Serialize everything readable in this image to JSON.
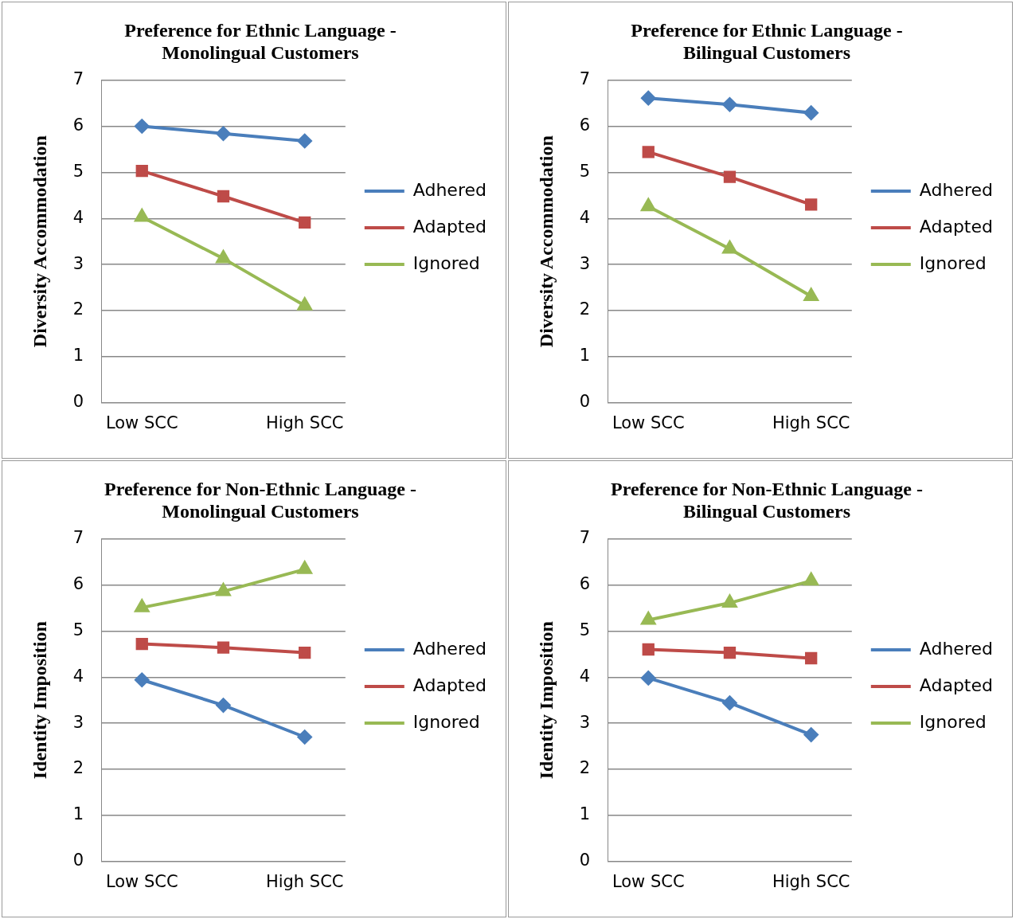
{
  "chart_data": [
    {
      "type": "line",
      "title": "Preference for Ethnic Language - Monolingual Customers",
      "ylabel": "Diversity Accommodation",
      "categories": [
        "Low SCC",
        null,
        "High SCC"
      ],
      "ylim": [
        0,
        7
      ],
      "yticks": [
        0,
        1,
        2,
        3,
        4,
        5,
        6,
        7
      ],
      "grid": "y",
      "legend": "right",
      "series": [
        {
          "name": "Adhered",
          "color": "#4a7ebb",
          "marker": "diamond",
          "values": [
            6.0,
            5.84,
            5.68
          ]
        },
        {
          "name": "Adapted",
          "color": "#be4b48",
          "marker": "square",
          "values": [
            5.03,
            4.48,
            3.91
          ]
        },
        {
          "name": "Ignored",
          "color": "#98b954",
          "marker": "triangle",
          "values": [
            4.03,
            3.13,
            2.11
          ]
        }
      ]
    },
    {
      "type": "line",
      "title": "Preference for Ethnic Language - Bilingual Customers",
      "ylabel": "Diversity Accommodation",
      "categories": [
        "Low SCC",
        null,
        "High SCC"
      ],
      "ylim": [
        0,
        7
      ],
      "yticks": [
        0,
        1,
        2,
        3,
        4,
        5,
        6,
        7
      ],
      "grid": "y",
      "legend": "right",
      "series": [
        {
          "name": "Adhered",
          "color": "#4a7ebb",
          "marker": "diamond",
          "values": [
            6.61,
            6.47,
            6.29
          ]
        },
        {
          "name": "Adapted",
          "color": "#be4b48",
          "marker": "square",
          "values": [
            5.44,
            4.9,
            4.3
          ]
        },
        {
          "name": "Ignored",
          "color": "#98b954",
          "marker": "triangle",
          "values": [
            4.26,
            3.34,
            2.31
          ]
        }
      ]
    },
    {
      "type": "line",
      "title": "Preference for Non-Ethnic Language - Monolingual Customers",
      "ylabel": "Identity Imposition",
      "categories": [
        "Low SCC",
        null,
        "High SCC"
      ],
      "ylim": [
        0,
        7
      ],
      "yticks": [
        0,
        1,
        2,
        3,
        4,
        5,
        6,
        7
      ],
      "grid": "y",
      "legend": "right",
      "series": [
        {
          "name": "Adhered",
          "color": "#4a7ebb",
          "marker": "diamond",
          "values": [
            3.94,
            3.39,
            2.7
          ]
        },
        {
          "name": "Adapted",
          "color": "#be4b48",
          "marker": "square",
          "values": [
            4.72,
            4.64,
            4.53
          ]
        },
        {
          "name": "Ignored",
          "color": "#98b954",
          "marker": "triangle",
          "values": [
            5.51,
            5.86,
            6.34
          ]
        }
      ]
    },
    {
      "type": "line",
      "title": "Preference for Non-Ethnic Language - Bilingual Customers",
      "ylabel": "Identity Imposition",
      "categories": [
        "Low SCC",
        null,
        "High SCC"
      ],
      "ylim": [
        0,
        7
      ],
      "yticks": [
        0,
        1,
        2,
        3,
        4,
        5,
        6,
        7
      ],
      "grid": "y",
      "legend": "right",
      "series": [
        {
          "name": "Adhered",
          "color": "#4a7ebb",
          "marker": "diamond",
          "values": [
            3.98,
            3.44,
            2.75
          ]
        },
        {
          "name": "Adapted",
          "color": "#be4b48",
          "marker": "square",
          "values": [
            4.6,
            4.53,
            4.41
          ]
        },
        {
          "name": "Ignored",
          "color": "#98b954",
          "marker": "triangle",
          "values": [
            5.24,
            5.61,
            6.09
          ]
        }
      ]
    }
  ]
}
